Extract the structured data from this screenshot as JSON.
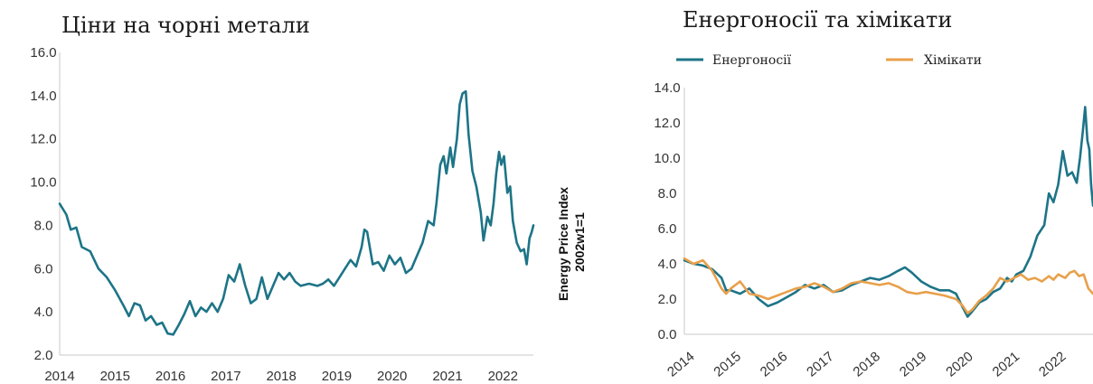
{
  "chart_data": [
    {
      "type": "line",
      "title": "Ціни на чорні метали",
      "xlabel": "",
      "ylabel": "",
      "ylim": [
        2.0,
        16.0
      ],
      "yticks": [
        "2.0",
        "4.0",
        "6.0",
        "8.0",
        "10.0",
        "12.0",
        "14.0",
        "16.0"
      ],
      "xticks": [
        "2014",
        "2015",
        "2016",
        "2017",
        "2018",
        "2019",
        "2020",
        "2021",
        "2022"
      ],
      "xlim": [
        2014.0,
        2022.55
      ],
      "grid": false,
      "legend": "none",
      "series": [
        {
          "color": "#1d7487",
          "points": [
            [
              2014.0,
              9.0
            ],
            [
              2014.12,
              8.5
            ],
            [
              2014.2,
              7.8
            ],
            [
              2014.3,
              7.9
            ],
            [
              2014.4,
              7.0
            ],
            [
              2014.55,
              6.8
            ],
            [
              2014.7,
              6.0
            ],
            [
              2014.85,
              5.6
            ],
            [
              2015.0,
              5.0
            ],
            [
              2015.15,
              4.3
            ],
            [
              2015.25,
              3.8
            ],
            [
              2015.35,
              4.4
            ],
            [
              2015.45,
              4.3
            ],
            [
              2015.55,
              3.6
            ],
            [
              2015.65,
              3.8
            ],
            [
              2015.75,
              3.4
            ],
            [
              2015.85,
              3.5
            ],
            [
              2015.95,
              3.0
            ],
            [
              2016.05,
              2.95
            ],
            [
              2016.15,
              3.4
            ],
            [
              2016.25,
              3.9
            ],
            [
              2016.35,
              4.5
            ],
            [
              2016.45,
              3.8
            ],
            [
              2016.55,
              4.2
            ],
            [
              2016.65,
              4.0
            ],
            [
              2016.75,
              4.4
            ],
            [
              2016.85,
              4.0
            ],
            [
              2016.95,
              4.6
            ],
            [
              2017.05,
              5.7
            ],
            [
              2017.15,
              5.4
            ],
            [
              2017.25,
              6.2
            ],
            [
              2017.35,
              5.2
            ],
            [
              2017.45,
              4.4
            ],
            [
              2017.55,
              4.6
            ],
            [
              2017.65,
              5.6
            ],
            [
              2017.75,
              4.6
            ],
            [
              2017.85,
              5.2
            ],
            [
              2017.95,
              5.8
            ],
            [
              2018.05,
              5.5
            ],
            [
              2018.15,
              5.8
            ],
            [
              2018.25,
              5.4
            ],
            [
              2018.35,
              5.2
            ],
            [
              2018.5,
              5.3
            ],
            [
              2018.65,
              5.2
            ],
            [
              2018.75,
              5.3
            ],
            [
              2018.85,
              5.5
            ],
            [
              2018.95,
              5.2
            ],
            [
              2019.05,
              5.6
            ],
            [
              2019.15,
              6.0
            ],
            [
              2019.25,
              6.4
            ],
            [
              2019.35,
              6.1
            ],
            [
              2019.45,
              7.0
            ],
            [
              2019.5,
              7.8
            ],
            [
              2019.55,
              7.7
            ],
            [
              2019.65,
              6.2
            ],
            [
              2019.75,
              6.3
            ],
            [
              2019.85,
              5.9
            ],
            [
              2019.95,
              6.6
            ],
            [
              2020.05,
              6.2
            ],
            [
              2020.15,
              6.5
            ],
            [
              2020.25,
              5.8
            ],
            [
              2020.35,
              6.0
            ],
            [
              2020.45,
              6.6
            ],
            [
              2020.55,
              7.2
            ],
            [
              2020.65,
              8.2
            ],
            [
              2020.75,
              8.0
            ],
            [
              2020.8,
              9.0
            ],
            [
              2020.87,
              10.8
            ],
            [
              2020.93,
              11.2
            ],
            [
              2020.98,
              10.4
            ],
            [
              2021.05,
              11.6
            ],
            [
              2021.1,
              10.7
            ],
            [
              2021.17,
              12.0
            ],
            [
              2021.22,
              13.6
            ],
            [
              2021.27,
              14.1
            ],
            [
              2021.33,
              14.2
            ],
            [
              2021.38,
              12.2
            ],
            [
              2021.45,
              10.5
            ],
            [
              2021.52,
              9.8
            ],
            [
              2021.6,
              8.6
            ],
            [
              2021.65,
              7.3
            ],
            [
              2021.72,
              8.4
            ],
            [
              2021.78,
              8.0
            ],
            [
              2021.83,
              9.0
            ],
            [
              2021.88,
              10.4
            ],
            [
              2021.93,
              11.4
            ],
            [
              2021.97,
              10.8
            ],
            [
              2022.02,
              11.2
            ],
            [
              2022.08,
              9.5
            ],
            [
              2022.13,
              9.8
            ],
            [
              2022.18,
              8.2
            ],
            [
              2022.25,
              7.2
            ],
            [
              2022.32,
              6.8
            ],
            [
              2022.38,
              6.9
            ],
            [
              2022.43,
              6.2
            ],
            [
              2022.48,
              7.4
            ],
            [
              2022.52,
              7.7
            ],
            [
              2022.55,
              8.0
            ]
          ]
        }
      ]
    },
    {
      "type": "line",
      "title": "Енергоносії та хімікати",
      "xlabel": "",
      "ylabel": "Energy Price Index\n2002w1=1",
      "ylim": [
        0.0,
        14.0
      ],
      "yticks": [
        "0.0",
        "2.0",
        "4.0",
        "6.0",
        "8.0",
        "10.0",
        "12.0",
        "14.0"
      ],
      "xticks": [
        "2014",
        "2015",
        "2016",
        "2017",
        "2018",
        "2019",
        "2020",
        "2021",
        "2022"
      ],
      "xlim": [
        2014.0,
        2022.8
      ],
      "grid": false,
      "legend": "top",
      "series": [
        {
          "name": "Енергоносії",
          "color": "#1d7487",
          "points": [
            [
              2014.0,
              4.2
            ],
            [
              2014.2,
              4.0
            ],
            [
              2014.4,
              3.9
            ],
            [
              2014.6,
              3.7
            ],
            [
              2014.8,
              3.2
            ],
            [
              2014.9,
              2.5
            ],
            [
              2015.0,
              2.5
            ],
            [
              2015.2,
              2.3
            ],
            [
              2015.4,
              2.6
            ],
            [
              2015.6,
              2.0
            ],
            [
              2015.8,
              1.6
            ],
            [
              2016.0,
              1.8
            ],
            [
              2016.2,
              2.1
            ],
            [
              2016.4,
              2.4
            ],
            [
              2016.6,
              2.8
            ],
            [
              2016.8,
              2.6
            ],
            [
              2017.0,
              2.8
            ],
            [
              2017.2,
              2.4
            ],
            [
              2017.4,
              2.5
            ],
            [
              2017.6,
              2.8
            ],
            [
              2017.8,
              3.0
            ],
            [
              2018.0,
              3.2
            ],
            [
              2018.2,
              3.1
            ],
            [
              2018.4,
              3.3
            ],
            [
              2018.6,
              3.6
            ],
            [
              2018.75,
              3.8
            ],
            [
              2018.9,
              3.5
            ],
            [
              2019.1,
              3.0
            ],
            [
              2019.3,
              2.7
            ],
            [
              2019.5,
              2.5
            ],
            [
              2019.7,
              2.5
            ],
            [
              2019.85,
              2.3
            ],
            [
              2020.0,
              1.5
            ],
            [
              2020.1,
              1.0
            ],
            [
              2020.2,
              1.3
            ],
            [
              2020.35,
              1.8
            ],
            [
              2020.5,
              2.0
            ],
            [
              2020.65,
              2.4
            ],
            [
              2020.8,
              2.6
            ],
            [
              2020.95,
              3.2
            ],
            [
              2021.05,
              3.0
            ],
            [
              2021.15,
              3.4
            ],
            [
              2021.3,
              3.6
            ],
            [
              2021.45,
              4.4
            ],
            [
              2021.6,
              5.6
            ],
            [
              2021.75,
              6.2
            ],
            [
              2021.85,
              8.0
            ],
            [
              2021.95,
              7.5
            ],
            [
              2022.05,
              8.5
            ],
            [
              2022.15,
              10.4
            ],
            [
              2022.25,
              9.0
            ],
            [
              2022.35,
              9.2
            ],
            [
              2022.45,
              8.6
            ],
            [
              2022.52,
              10.0
            ],
            [
              2022.58,
              11.5
            ],
            [
              2022.63,
              12.9
            ],
            [
              2022.68,
              11.0
            ],
            [
              2022.72,
              10.5
            ],
            [
              2022.76,
              8.5
            ],
            [
              2022.8,
              7.3
            ]
          ]
        },
        {
          "name": "Хімікати",
          "color": "#e8a04a",
          "points": [
            [
              2014.0,
              4.3
            ],
            [
              2014.2,
              4.0
            ],
            [
              2014.4,
              4.2
            ],
            [
              2014.6,
              3.6
            ],
            [
              2014.8,
              2.6
            ],
            [
              2014.9,
              2.3
            ],
            [
              2015.0,
              2.6
            ],
            [
              2015.2,
              3.0
            ],
            [
              2015.4,
              2.3
            ],
            [
              2015.6,
              2.2
            ],
            [
              2015.8,
              2.0
            ],
            [
              2016.0,
              2.2
            ],
            [
              2016.2,
              2.4
            ],
            [
              2016.4,
              2.6
            ],
            [
              2016.6,
              2.7
            ],
            [
              2016.8,
              2.9
            ],
            [
              2017.0,
              2.7
            ],
            [
              2017.2,
              2.4
            ],
            [
              2017.4,
              2.6
            ],
            [
              2017.6,
              2.9
            ],
            [
              2017.8,
              3.0
            ],
            [
              2018.0,
              2.9
            ],
            [
              2018.2,
              2.8
            ],
            [
              2018.4,
              2.9
            ],
            [
              2018.6,
              2.7
            ],
            [
              2018.8,
              2.4
            ],
            [
              2019.0,
              2.3
            ],
            [
              2019.2,
              2.4
            ],
            [
              2019.4,
              2.3
            ],
            [
              2019.6,
              2.2
            ],
            [
              2019.85,
              2.0
            ],
            [
              2020.0,
              1.6
            ],
            [
              2020.1,
              1.2
            ],
            [
              2020.2,
              1.4
            ],
            [
              2020.35,
              1.9
            ],
            [
              2020.5,
              2.2
            ],
            [
              2020.65,
              2.6
            ],
            [
              2020.8,
              3.2
            ],
            [
              2020.95,
              3.0
            ],
            [
              2021.1,
              3.2
            ],
            [
              2021.25,
              3.4
            ],
            [
              2021.4,
              3.1
            ],
            [
              2021.55,
              3.2
            ],
            [
              2021.7,
              3.0
            ],
            [
              2021.85,
              3.3
            ],
            [
              2021.95,
              3.1
            ],
            [
              2022.05,
              3.4
            ],
            [
              2022.2,
              3.2
            ],
            [
              2022.3,
              3.5
            ],
            [
              2022.4,
              3.6
            ],
            [
              2022.5,
              3.3
            ],
            [
              2022.6,
              3.4
            ],
            [
              2022.7,
              2.6
            ],
            [
              2022.8,
              2.3
            ]
          ]
        }
      ]
    }
  ]
}
